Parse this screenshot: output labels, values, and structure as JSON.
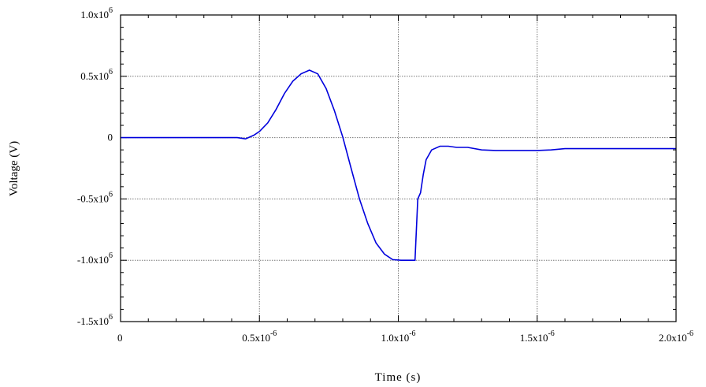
{
  "chart_data": {
    "type": "line",
    "xlabel": "Time (s)",
    "ylabel": "Voltage (V)",
    "xlim": [
      0,
      2e-06
    ],
    "ylim": [
      -1500000.0,
      1000000.0
    ],
    "grid": true,
    "x_ticks": [
      {
        "value": 0,
        "mantissa": "0",
        "exp": ""
      },
      {
        "value": 5e-07,
        "mantissa": "0.5x10",
        "exp": "-6"
      },
      {
        "value": 1e-06,
        "mantissa": "1.0x10",
        "exp": "-6"
      },
      {
        "value": 1.5e-06,
        "mantissa": "1.5x10",
        "exp": "-6"
      },
      {
        "value": 2e-06,
        "mantissa": "2.0x10",
        "exp": "-6"
      }
    ],
    "y_ticks": [
      {
        "value": 1000000.0,
        "mantissa": "1.0x10",
        "exp": "6"
      },
      {
        "value": 500000.0,
        "mantissa": "0.5x10",
        "exp": "6"
      },
      {
        "value": 0,
        "mantissa": "0",
        "exp": ""
      },
      {
        "value": -500000.0,
        "mantissa": "-0.5x10",
        "exp": "6"
      },
      {
        "value": -1000000.0,
        "mantissa": "-1.0x10",
        "exp": "6"
      },
      {
        "value": -1500000.0,
        "mantissa": "-1.5x10",
        "exp": "6"
      }
    ],
    "series": [
      {
        "color": "#0000dd",
        "x": [
          0,
          4.2e-07,
          4.5e-07,
          4.8e-07,
          5e-07,
          5.3e-07,
          5.6e-07,
          5.9e-07,
          6.2e-07,
          6.5e-07,
          6.8e-07,
          7.1e-07,
          7.4e-07,
          7.7e-07,
          8e-07,
          8.3e-07,
          8.6e-07,
          8.9e-07,
          9.2e-07,
          9.5e-07,
          9.8e-07,
          1.01e-06,
          1.04e-06,
          1.06e-06,
          1.07e-06,
          1.08e-06,
          1.09e-06,
          1.1e-06,
          1.12e-06,
          1.15e-06,
          1.18e-06,
          1.21e-06,
          1.25e-06,
          1.3e-06,
          1.35e-06,
          1.4e-06,
          1.45e-06,
          1.5e-06,
          1.55e-06,
          1.6e-06,
          1.65e-06,
          1.7e-06,
          1.75e-06,
          1.8e-06,
          1.85e-06,
          1.9e-06,
          1.95e-06,
          2e-06
        ],
        "y": [
          0,
          0,
          -10000.0,
          20000.0,
          50000.0,
          120000.0,
          230000.0,
          360000.0,
          460000.0,
          520000.0,
          550000.0,
          520000.0,
          400000.0,
          220000.0,
          5000.0,
          -250000.0,
          -500000.0,
          -700000.0,
          -860000.0,
          -950000.0,
          -995000.0,
          -1000000.0,
          -1000000.0,
          -1000000.0,
          -500000.0,
          -450000.0,
          -300000.0,
          -180000.0,
          -100000.0,
          -70000.0,
          -70000.0,
          -80000.0,
          -80000.0,
          -100000.0,
          -105000.0,
          -105000.0,
          -105000.0,
          -105000.0,
          -100000.0,
          -90000.0,
          -90000.0,
          -90000.0,
          -90000.0,
          -90000.0,
          -90000.0,
          -90000.0,
          -90000.0,
          -90000.0
        ]
      }
    ]
  }
}
